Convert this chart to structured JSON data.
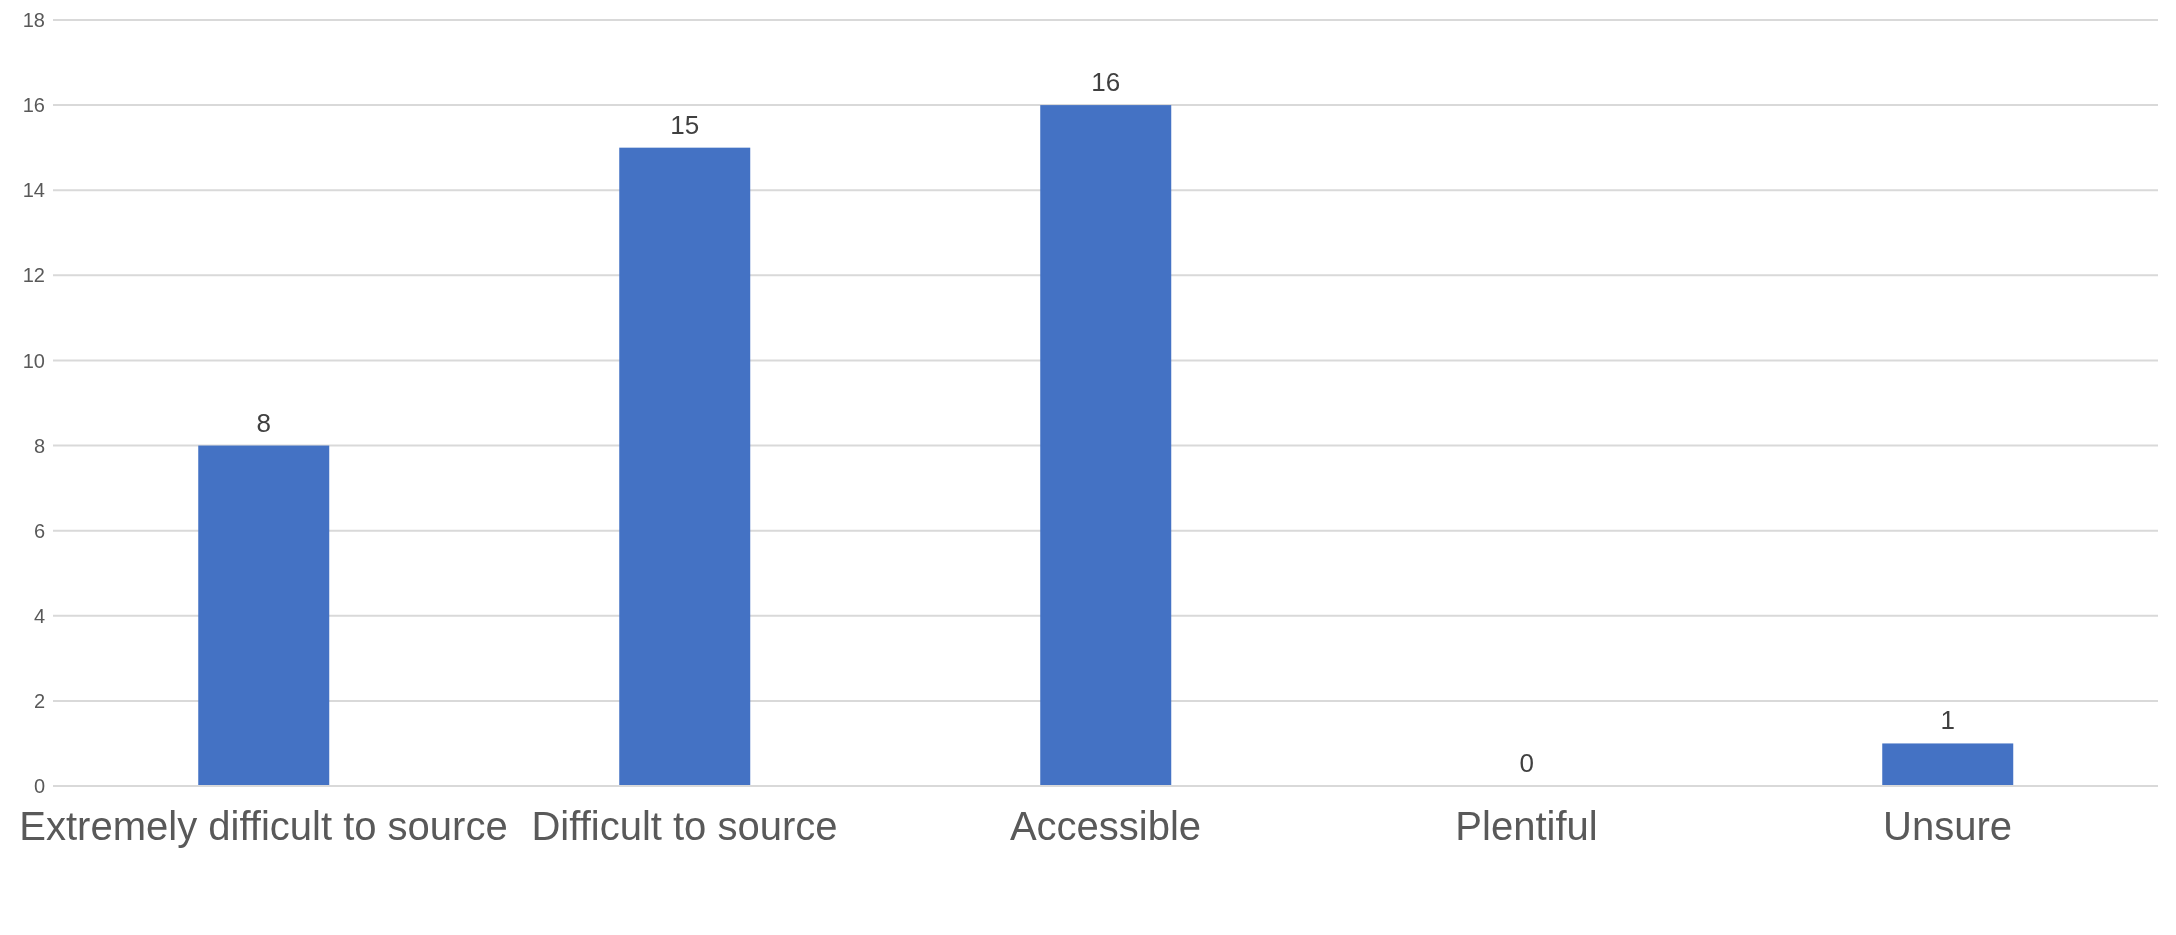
{
  "chart_data": {
    "type": "bar",
    "categories": [
      "Extremely difficult to source",
      "Difficult to source",
      "Accessible",
      "Plentiful",
      "Unsure"
    ],
    "values": [
      8,
      15,
      16,
      0,
      1
    ],
    "color": "#4472c4",
    "ylim": [
      0,
      18
    ],
    "yticks": [
      0,
      2,
      4,
      6,
      8,
      10,
      12,
      14,
      16,
      18
    ],
    "grid": "y",
    "data_labels": true
  }
}
